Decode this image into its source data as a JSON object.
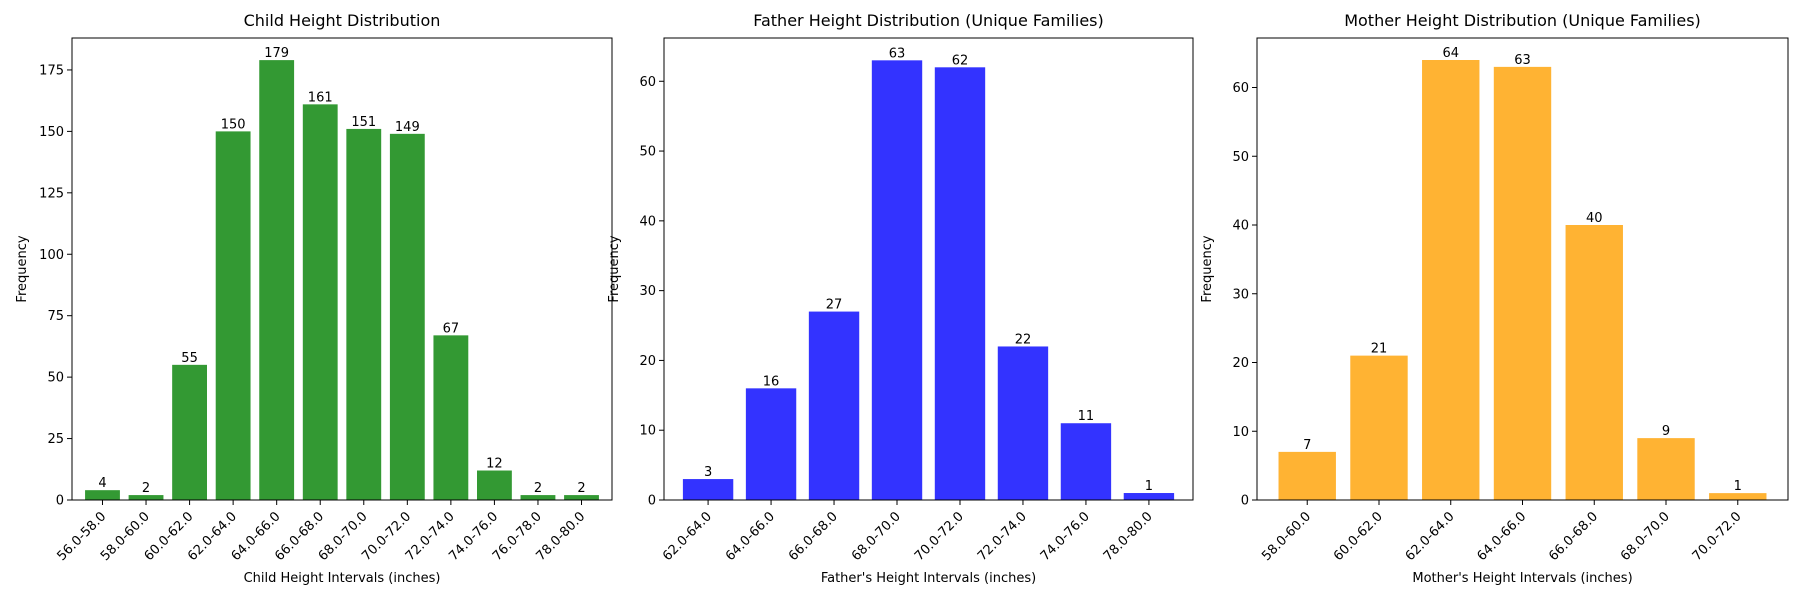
{
  "chart_data": [
    {
      "type": "bar",
      "title": "Child Height Distribution",
      "xlabel": "Child Height Intervals (inches)",
      "ylabel": "Frequency",
      "categories": [
        "56.0-58.0",
        "58.0-60.0",
        "60.0-62.0",
        "62.0-64.0",
        "64.0-66.0",
        "66.0-68.0",
        "68.0-70.0",
        "70.0-72.0",
        "72.0-74.0",
        "74.0-76.0",
        "76.0-78.0",
        "78.0-80.0"
      ],
      "values": [
        4,
        2,
        55,
        150,
        179,
        161,
        151,
        149,
        67,
        12,
        2,
        2
      ],
      "ylim": [
        0,
        188
      ],
      "yticks": [
        0,
        25,
        50,
        75,
        100,
        125,
        150,
        175
      ],
      "color": "#339933",
      "grid": false,
      "data_labels": true
    },
    {
      "type": "bar",
      "title": "Father Height Distribution (Unique Families)",
      "xlabel": "Father's Height Intervals (inches)",
      "ylabel": "Frequency",
      "categories": [
        "62.0-64.0",
        "64.0-66.0",
        "66.0-68.0",
        "68.0-70.0",
        "70.0-72.0",
        "72.0-74.0",
        "74.0-76.0",
        "78.0-80.0"
      ],
      "values": [
        3,
        16,
        27,
        63,
        62,
        22,
        11,
        1
      ],
      "ylim": [
        0,
        66.2
      ],
      "yticks": [
        0,
        10,
        20,
        30,
        40,
        50,
        60
      ],
      "color": "#3333ff",
      "grid": false,
      "data_labels": true
    },
    {
      "type": "bar",
      "title": "Mother Height Distribution (Unique Families)",
      "xlabel": "Mother's Height Intervals (inches)",
      "ylabel": "Frequency",
      "categories": [
        "58.0-60.0",
        "60.0-62.0",
        "62.0-64.0",
        "64.0-66.0",
        "66.0-68.0",
        "68.0-70.0",
        "70.0-72.0"
      ],
      "values": [
        7,
        21,
        64,
        63,
        40,
        9,
        1
      ],
      "ylim": [
        0,
        67.2
      ],
      "yticks": [
        0,
        10,
        20,
        30,
        40,
        50,
        60
      ],
      "color": "#ffb333",
      "grid": false,
      "data_labels": true
    }
  ]
}
